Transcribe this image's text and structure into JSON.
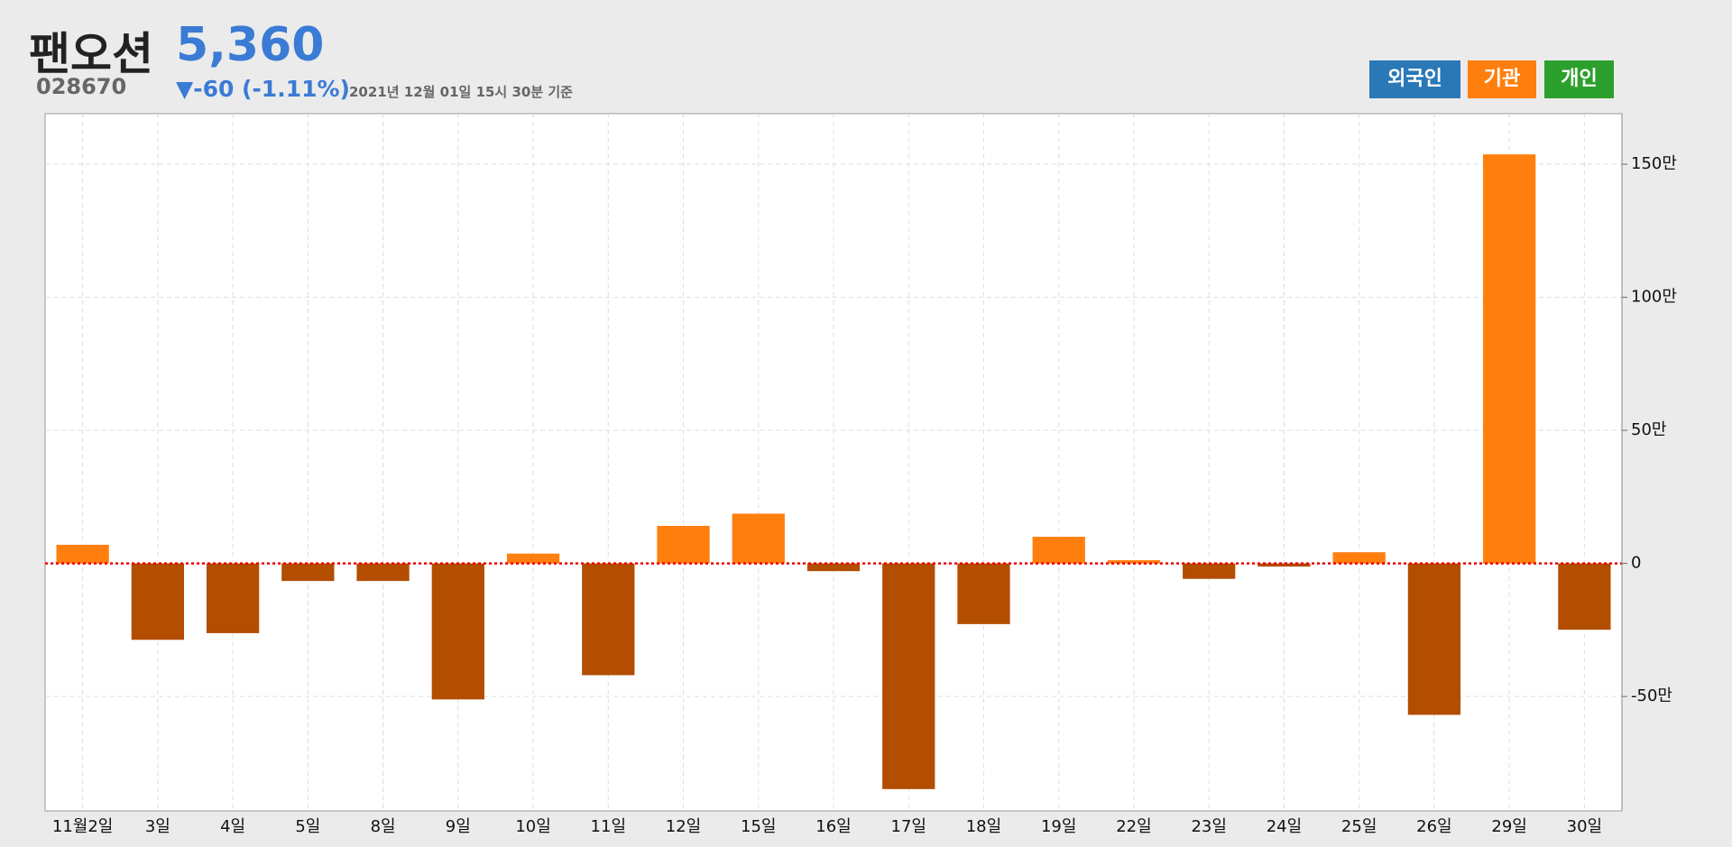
{
  "header": {
    "name": "팬오션",
    "price": "5,360",
    "code": "028670",
    "change": "▼-60",
    "change_pct": "(-1.11%)",
    "timestamp": "2021년 12월 01일 15시 30분 기준"
  },
  "buttons": [
    {
      "label": "외국인",
      "color": "#2a78b6"
    },
    {
      "label": "기관",
      "color": "#ff7f0e"
    },
    {
      "label": "개인",
      "color": "#2ca02c"
    }
  ],
  "chart_data": {
    "type": "bar",
    "categories": [
      "11월2일",
      "3일",
      "4일",
      "5일",
      "8일",
      "9일",
      "10일",
      "11일",
      "12일",
      "15일",
      "16일",
      "17일",
      "18일",
      "19일",
      "22일",
      "23일",
      "24일",
      "25일",
      "26일",
      "29일",
      "30일"
    ],
    "values": [
      70000,
      -287000,
      -262000,
      -66000,
      -66000,
      -511000,
      37000,
      -420000,
      141000,
      187000,
      -29000,
      -848000,
      -228000,
      100000,
      12000,
      -58000,
      -12000,
      42000,
      -569000,
      1537000,
      -249000
    ],
    "color": "#ff7f0e",
    "negative_color": "#b34d00",
    "ylim": [
      -930000,
      1690000
    ],
    "yticks": [
      {
        "value": -500000,
        "label": "-50만"
      },
      0,
      {
        "value": 500000,
        "label": "50만"
      },
      {
        "value": 1000000,
        "label": "100만"
      },
      {
        "value": 1500000,
        "label": "150만"
      }
    ],
    "grid": true
  }
}
